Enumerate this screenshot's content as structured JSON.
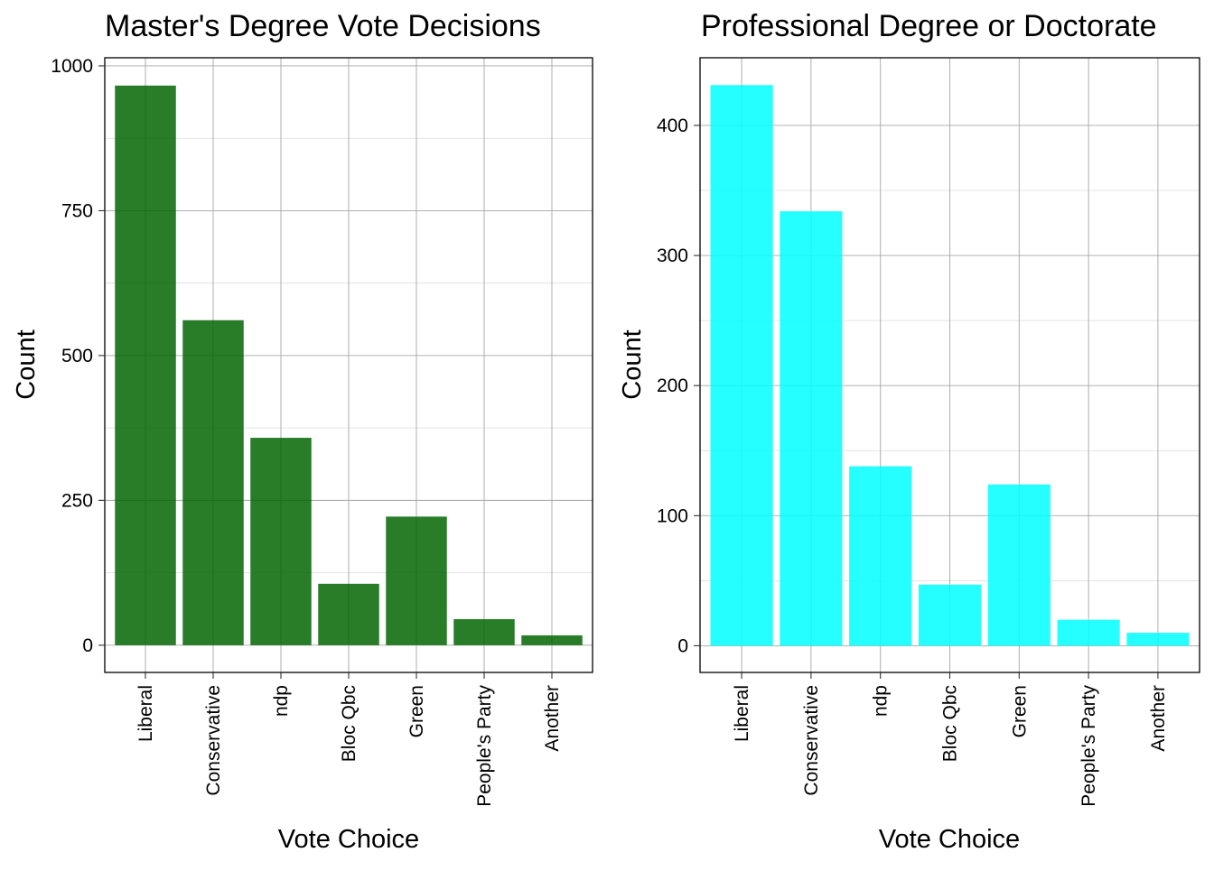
{
  "chart_data": [
    {
      "type": "bar",
      "title": "Master's Degree Vote Decisions",
      "xlabel": "Vote Choice",
      "ylabel": "Count",
      "categories": [
        "Liberal",
        "Conservative",
        "ndp",
        "Bloc Qbc",
        "Green",
        "People's Party",
        "Another"
      ],
      "values": [
        966,
        561,
        358,
        106,
        222,
        45,
        17
      ],
      "ylim": [
        -47,
        1014
      ],
      "yticks": [
        0,
        250,
        500,
        750,
        1000
      ],
      "ytick_labels": [
        "0",
        "250",
        "500",
        "750",
        "1000"
      ],
      "grid": true,
      "color": "#006400"
    },
    {
      "type": "bar",
      "title": "Professional Degree or Doctorate",
      "xlabel": "Vote Choice",
      "ylabel": "Count",
      "categories": [
        "Liberal",
        "Conservative",
        "ndp",
        "Bloc Qbc",
        "Green",
        "People's Party",
        "Another"
      ],
      "values": [
        431,
        334,
        138,
        47,
        124,
        20,
        10
      ],
      "ylim": [
        -20.5,
        452
      ],
      "yticks": [
        0,
        100,
        200,
        300,
        400
      ],
      "ytick_labels": [
        "0",
        "100",
        "200",
        "300",
        "400"
      ],
      "grid": true,
      "color": "#00FFFF"
    }
  ]
}
